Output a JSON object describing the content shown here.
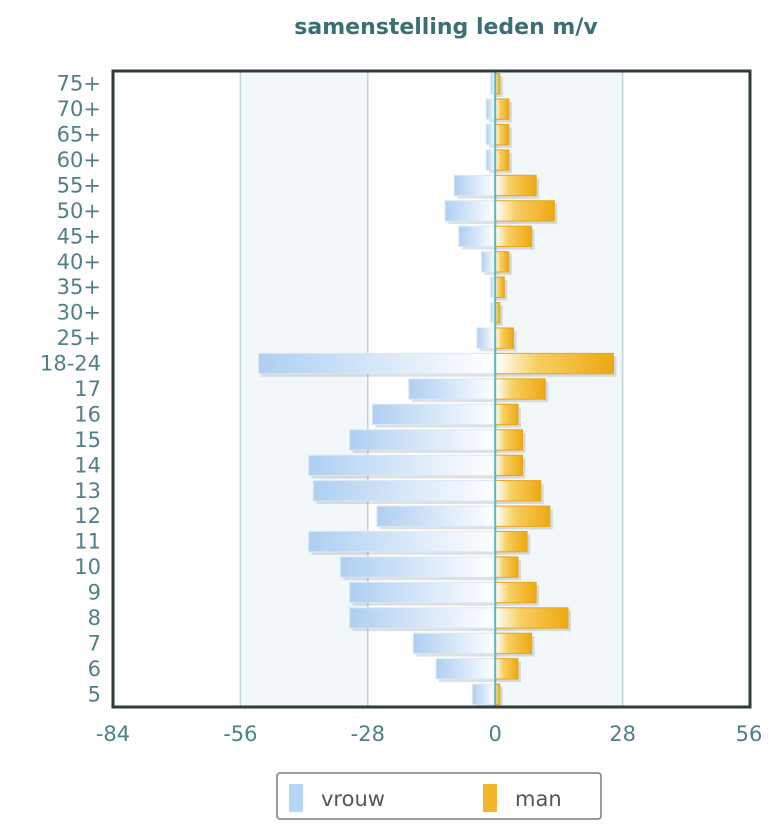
{
  "chart_data": {
    "type": "bar",
    "orientation": "horizontal",
    "stacking": "diverging",
    "title": "samenstelling leden m/v",
    "categories": [
      "5",
      "6",
      "7",
      "8",
      "9",
      "10",
      "11",
      "12",
      "13",
      "14",
      "15",
      "16",
      "17",
      "18-24",
      "25+",
      "30+",
      "35+",
      "40+",
      "45+",
      "50+",
      "55+",
      "60+",
      "65+",
      "70+",
      "75+"
    ],
    "series": [
      {
        "name": "vrouw",
        "color": "#b5d6f5",
        "values": [
          -5,
          -13,
          -18,
          -32,
          -32,
          -34,
          -41,
          -26,
          -40,
          -41,
          -32,
          -27,
          -19,
          -52,
          -4,
          -1,
          -1,
          -3,
          -8,
          -11,
          -9,
          -2,
          -2,
          -2,
          -1
        ]
      },
      {
        "name": "man",
        "color": "#f2b52a",
        "values": [
          1,
          5,
          8,
          16,
          9,
          5,
          7,
          12,
          10,
          6,
          6,
          5,
          11,
          26,
          4,
          1,
          2,
          3,
          8,
          13,
          9,
          3,
          3,
          3,
          1
        ]
      }
    ],
    "xticks": [
      "-84",
      "-56",
      "-28",
      "0",
      "28",
      "56"
    ],
    "xlim": [
      -84,
      56
    ],
    "grid": true,
    "legend": "bottom"
  }
}
